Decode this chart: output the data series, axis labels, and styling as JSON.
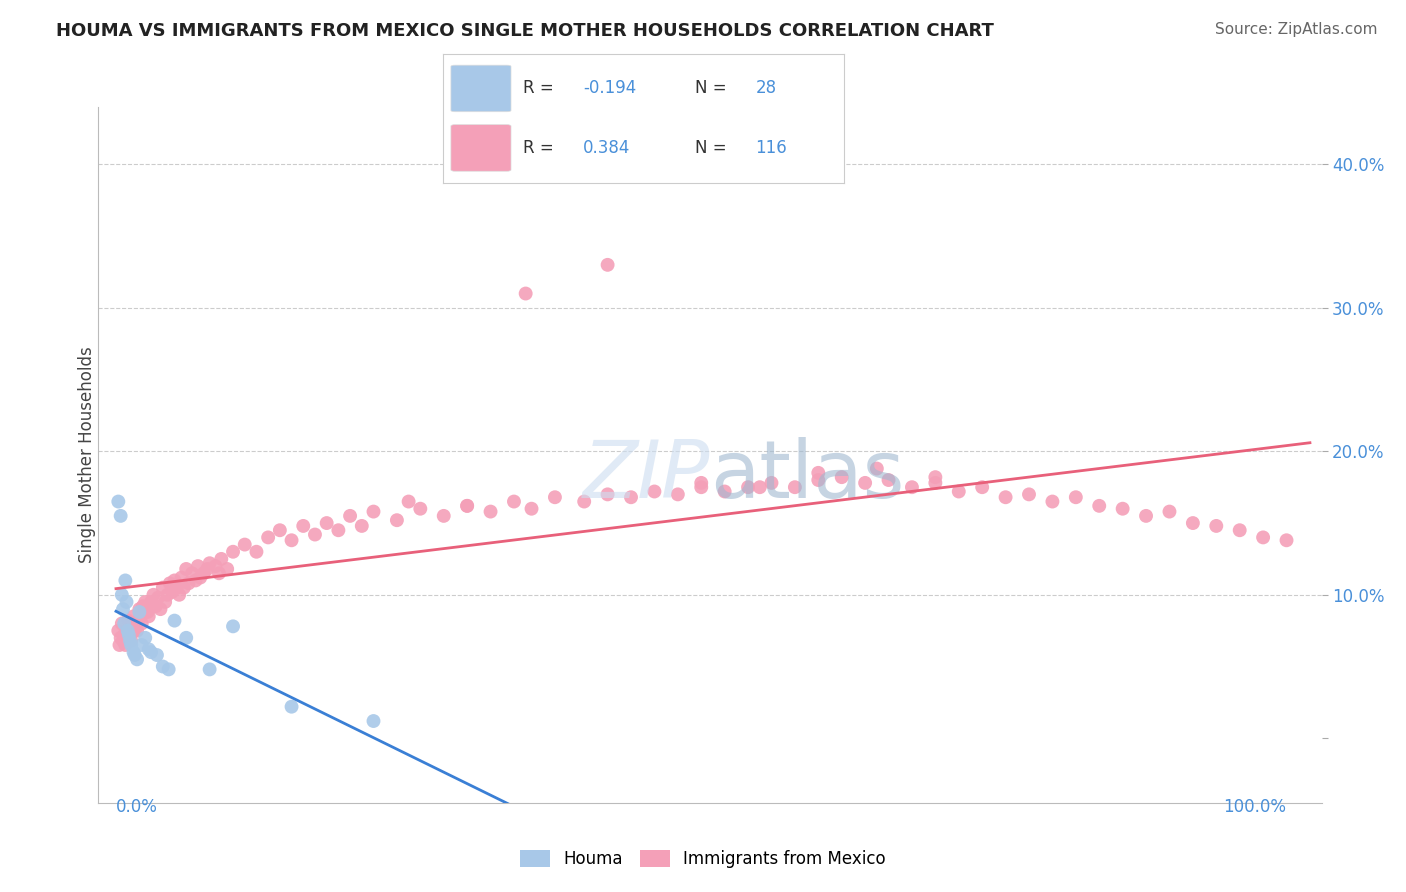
{
  "title": "HOUMA VS IMMIGRANTS FROM MEXICO SINGLE MOTHER HOUSEHOLDS CORRELATION CHART",
  "source": "Source: ZipAtlas.com",
  "ylabel": "Single Mother Households",
  "legend_bottom": [
    "Houma",
    "Immigrants from Mexico"
  ],
  "R_houma": -0.194,
  "N_houma": 28,
  "R_immigrants": 0.384,
  "N_immigrants": 116,
  "houma_color": "#a8c8e8",
  "immigrants_color": "#f4a0b8",
  "houma_line_color": "#3a7fd5",
  "immigrants_line_color": "#e8607a",
  "background_color": "#ffffff",
  "grid_color": "#cccccc",
  "tick_color": "#4a90d9",
  "title_color": "#222222",
  "watermark_color": "#ccddf0",
  "watermark_alpha": 0.6
}
